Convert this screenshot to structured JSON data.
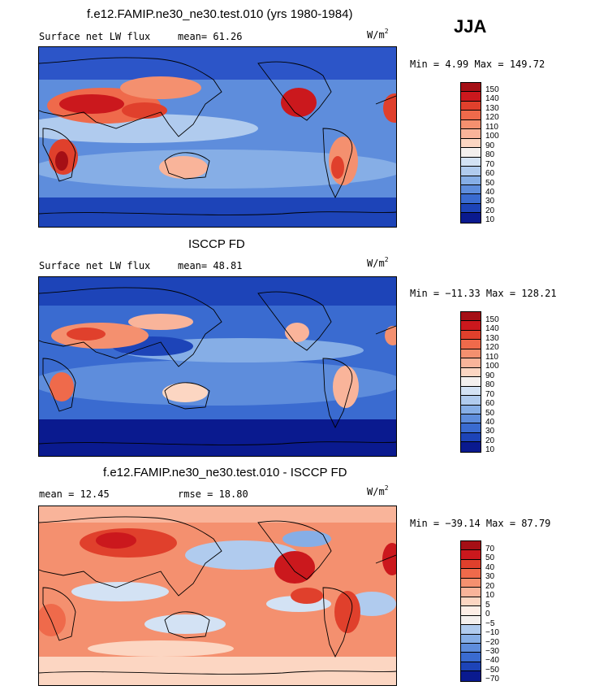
{
  "season": "JJA",
  "panels": [
    {
      "title": "f.e12.FAMIP.ne30_ne30.test.010 (yrs 1980-1984)",
      "left_label": "Surface net LW flux",
      "mid_label": "mean=  61.26",
      "units_base": "W/m",
      "units_exp": "2",
      "minmax": "Min =   4.99 Max = 149.72",
      "colorbar_labels": [
        "150",
        "140",
        "130",
        "120",
        "110",
        "100",
        "90",
        "80",
        "70",
        "60",
        "50",
        "40",
        "30",
        "20",
        "10"
      ],
      "colorbar_colors": [
        "#a50f15",
        "#cb181d",
        "#e0402c",
        "#ef6a4b",
        "#f4906f",
        "#f9b49a",
        "#fcd6c2",
        "#f4f0ee",
        "#d3e2f4",
        "#b0cbee",
        "#86aee6",
        "#5e8ddc",
        "#3a6bd0",
        "#1d44b8",
        "#0a1a8f"
      ]
    },
    {
      "title": "ISCCP FD",
      "left_label": "Surface net LW flux",
      "mid_label": "mean=  48.81",
      "units_base": "W/m",
      "units_exp": "2",
      "minmax": "Min = −11.33 Max = 128.21",
      "colorbar_labels": [
        "150",
        "140",
        "130",
        "120",
        "110",
        "100",
        "90",
        "80",
        "70",
        "60",
        "50",
        "40",
        "30",
        "20",
        "10"
      ],
      "colorbar_colors": [
        "#a50f15",
        "#cb181d",
        "#e0402c",
        "#ef6a4b",
        "#f4906f",
        "#f9b49a",
        "#fcd6c2",
        "#f4f0ee",
        "#d3e2f4",
        "#b0cbee",
        "#86aee6",
        "#5e8ddc",
        "#3a6bd0",
        "#1d44b8",
        "#0a1a8f"
      ]
    },
    {
      "title": "f.e12.FAMIP.ne30_ne30.test.010 - ISCCP FD",
      "left_label": "mean =  12.45",
      "mid_label": "rmse =  18.80",
      "units_base": "W/m",
      "units_exp": "2",
      "minmax": "Min = −39.14 Max =  87.79",
      "colorbar_labels": [
        "70",
        "50",
        "40",
        "30",
        "20",
        "10",
        "5",
        "0",
        "−5",
        "−10",
        "−20",
        "−30",
        "−40",
        "−50",
        "−70"
      ],
      "colorbar_colors": [
        "#a50f15",
        "#cb181d",
        "#e0402c",
        "#ef6a4b",
        "#f4906f",
        "#f9b49a",
        "#fcd6c2",
        "#fdeee6",
        "#f4f0ee",
        "#b0cbee",
        "#86aee6",
        "#5e8ddc",
        "#3a6bd0",
        "#1d44b8",
        "#0a1a8f"
      ]
    }
  ]
}
